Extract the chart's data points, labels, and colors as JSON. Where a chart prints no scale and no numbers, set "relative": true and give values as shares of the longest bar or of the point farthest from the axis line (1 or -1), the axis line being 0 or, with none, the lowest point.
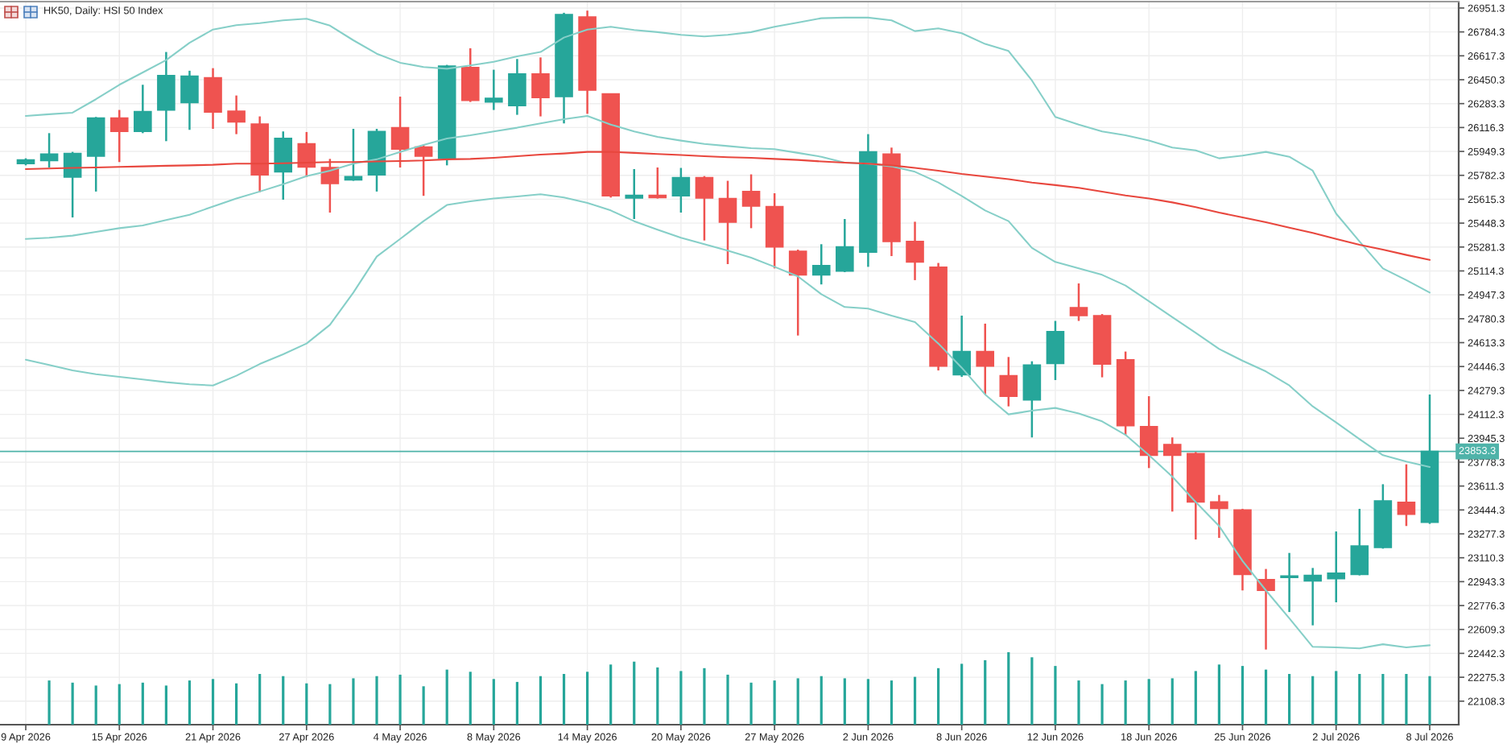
{
  "chart_data": [
    {
      "type": "candlestick",
      "title": "HK50, Daily: HSI 50 Index",
      "categories": [
        "9 Apr 2026",
        null,
        null,
        null,
        "15 Apr 2026",
        null,
        null,
        null,
        "21 Apr 2026",
        null,
        null,
        null,
        "27 Apr 2026",
        null,
        null,
        null,
        "4 May 2026",
        null,
        null,
        null,
        "8 May 2026",
        null,
        null,
        null,
        "14 May 2026",
        null,
        null,
        null,
        "20 May 2026",
        null,
        null,
        null,
        "27 May 2026",
        null,
        null,
        null,
        "2 Jun 2026",
        null,
        null,
        null,
        "8 Jun 2026",
        null,
        null,
        null,
        "12 Jun 2026",
        null,
        null,
        null,
        "18 Jun 2026",
        null,
        null,
        null,
        "25 Jun 2026",
        null,
        null,
        null,
        "2 Jul 2026",
        null,
        null,
        null,
        "8 Jul 2026"
      ],
      "ohlc": [
        [
          25864,
          25901,
          25852,
          25890
        ],
        [
          25886,
          26077,
          25837,
          25931
        ],
        [
          25770,
          25946,
          25488,
          25935
        ],
        [
          25916,
          26190,
          25669,
          26182
        ],
        [
          26182,
          26239,
          25875,
          26089
        ],
        [
          26089,
          26415,
          26077,
          26227
        ],
        [
          26239,
          26644,
          26021,
          26479
        ],
        [
          26291,
          26513,
          26100,
          26475
        ],
        [
          26464,
          26531,
          26107,
          26224
        ],
        [
          26231,
          26340,
          26070,
          26156
        ],
        [
          26141,
          26194,
          25665,
          25785
        ],
        [
          25807,
          26089,
          25612,
          26040
        ],
        [
          26002,
          26085,
          25770,
          25841
        ],
        [
          25837,
          25897,
          25522,
          25725
        ],
        [
          25751,
          26107,
          25744,
          25774
        ],
        [
          25785,
          26107,
          25669,
          26089
        ],
        [
          26115,
          26332,
          25837,
          25965
        ],
        [
          25980,
          25995,
          25639,
          25916
        ],
        [
          25901,
          26554,
          25852,
          26546
        ],
        [
          26535,
          26670,
          26295,
          26306
        ],
        [
          26295,
          26520,
          26239,
          26321
        ],
        [
          26269,
          26595,
          26205,
          26490
        ],
        [
          26490,
          26606,
          26194,
          26325
        ],
        [
          26332,
          26918,
          26145,
          26906
        ],
        [
          26888,
          26933,
          26212,
          26377
        ],
        [
          26351,
          26351,
          25627,
          25639
        ],
        [
          25624,
          25826,
          25477,
          25642
        ],
        [
          25642,
          25837,
          25620,
          25627
        ],
        [
          25639,
          25834,
          25522,
          25766
        ],
        [
          25766,
          25777,
          25327,
          25624
        ],
        [
          25620,
          25744,
          25162,
          25455
        ],
        [
          25669,
          25789,
          25413,
          25567
        ],
        [
          25564,
          25657,
          25132,
          25282
        ],
        [
          25252,
          25263,
          24663,
          25087
        ],
        [
          25087,
          25301,
          25020,
          25151
        ],
        [
          25113,
          25477,
          25106,
          25282
        ],
        [
          25245,
          26070,
          25143,
          25946
        ],
        [
          25931,
          25976,
          25218,
          25320
        ],
        [
          25320,
          25458,
          25050,
          25177
        ],
        [
          25140,
          25170,
          24419,
          24449
        ],
        [
          24389,
          24802,
          24374,
          24551
        ],
        [
          24551,
          24746,
          24251,
          24449
        ],
        [
          24382,
          24513,
          24168,
          24239
        ],
        [
          24213,
          24483,
          23951,
          24457
        ],
        [
          24468,
          24765,
          24352,
          24690
        ],
        [
          24858,
          25027,
          24765,
          24802
        ],
        [
          24802,
          24813,
          24371,
          24464
        ],
        [
          24494,
          24551,
          23969,
          24033
        ],
        [
          24026,
          24239,
          23737,
          23827
        ],
        [
          23902,
          23951,
          23433,
          23827
        ],
        [
          23838,
          23849,
          23238,
          23500
        ],
        [
          23500,
          23549,
          23249,
          23455
        ],
        [
          23444,
          23452,
          22882,
          22994
        ],
        [
          22957,
          23032,
          22469,
          22882
        ],
        [
          22972,
          23144,
          22731,
          22983
        ],
        [
          22949,
          23039,
          22638,
          22987
        ],
        [
          22964,
          23294,
          22799,
          23002
        ],
        [
          22994,
          23452,
          22987,
          23193
        ],
        [
          23182,
          23624,
          23174,
          23508
        ],
        [
          23497,
          23763,
          23332,
          23414
        ],
        [
          23358,
          24251,
          23347,
          23853.3
        ]
      ],
      "colors": [
        "#26a69a",
        "#26a69a",
        "#26a69a",
        "#26a69a",
        "#ef5350",
        "#26a69a",
        "#26a69a",
        "#26a69a",
        "#ef5350",
        "#ef5350",
        "#ef5350",
        "#26a69a",
        "#ef5350",
        "#ef5350",
        "#26a69a",
        "#26a69a",
        "#ef5350",
        "#ef5350",
        "#26a69a",
        "#ef5350",
        "#26a69a",
        "#26a69a",
        "#ef5350",
        "#26a69a",
        "#ef5350",
        "#ef5350",
        "#26a69a",
        "#ef5350",
        "#26a69a",
        "#ef5350",
        "#ef5350",
        "#ef5350",
        "#ef5350",
        "#ef5350",
        "#26a69a",
        "#26a69a",
        "#26a69a",
        "#ef5350",
        "#ef5350",
        "#ef5350",
        "#26a69a",
        "#ef5350",
        "#ef5350",
        "#26a69a",
        "#26a69a",
        "#ef5350",
        "#ef5350",
        "#ef5350",
        "#ef5350",
        "#ef5350",
        "#ef5350",
        "#ef5350",
        "#ef5350",
        "#ef5350",
        "#26a69a",
        "#26a69a",
        "#26a69a",
        "#26a69a",
        "#26a69a",
        "#ef5350",
        "#26a69a"
      ],
      "series": [
        {
          "type": "line",
          "color": "#86cfc8",
          "values": [
            26197,
            26209,
            26220,
            26314,
            26415,
            26501,
            26587,
            26708,
            26801,
            26831,
            26846,
            26865,
            26876,
            26828,
            26726,
            26632,
            26569,
            26539,
            26527,
            26550,
            26576,
            26614,
            26644,
            26745,
            26801,
            26820,
            26798,
            26783,
            26764,
            26753,
            26764,
            26783,
            26820,
            26850,
            26880,
            26884,
            26884,
            26865,
            26790,
            26809,
            26775,
            26700,
            26651,
            26445,
            26190,
            26137,
            26089,
            26062,
            26025,
            25976,
            25957,
            25901,
            25920,
            25946,
            25912,
            25815,
            25515,
            25320,
            25132,
            25050,
            24963
          ]
        },
        {
          "type": "line",
          "color": "#86cfc8",
          "values": [
            25338,
            25346,
            25361,
            25387,
            25413,
            25432,
            25470,
            25507,
            25564,
            25620,
            25669,
            25721,
            25777,
            25815,
            25864,
            25894,
            25946,
            25995,
            26040,
            26062,
            26089,
            26115,
            26145,
            26175,
            26197,
            26137,
            26089,
            26051,
            26025,
            26002,
            25987,
            25972,
            25965,
            25939,
            25912,
            25871,
            25864,
            25845,
            25807,
            25732,
            25638,
            25537,
            25462,
            25275,
            25177,
            25132,
            25087,
            25012,
            24903,
            24791,
            24682,
            24569,
            24487,
            24412,
            24314,
            24168,
            24056,
            23939,
            23827,
            23782,
            23744
          ]
        },
        {
          "type": "line",
          "color": "#86cfc8",
          "values": [
            24494,
            24457,
            24419,
            24393,
            24374,
            24356,
            24337,
            24322,
            24314,
            24382,
            24464,
            24532,
            24607,
            24738,
            24963,
            25215,
            25338,
            25462,
            25575,
            25601,
            25620,
            25635,
            25650,
            25627,
            25590,
            25537,
            25462,
            25402,
            25346,
            25301,
            25256,
            25207,
            25143,
            25076,
            24952,
            24862,
            24851,
            24802,
            24757,
            24607,
            24438,
            24251,
            24112,
            24138,
            24157,
            24119,
            24063,
            23969,
            23827,
            23677,
            23500,
            23332,
            23088,
            22882,
            22687,
            22488,
            22484,
            22477,
            22506,
            22484,
            22499
          ]
        },
        {
          "type": "line",
          "color": "#e8473e",
          "values": [
            25826,
            25830,
            25834,
            25837,
            25841,
            25845,
            25849,
            25852,
            25856,
            25864,
            25864,
            25867,
            25871,
            25875,
            25875,
            25879,
            25882,
            25886,
            25894,
            25897,
            25905,
            25916,
            25927,
            25935,
            25946,
            25946,
            25939,
            25931,
            25924,
            25916,
            25909,
            25905,
            25897,
            25890,
            25879,
            25871,
            25864,
            25852,
            25834,
            25815,
            25792,
            25774,
            25755,
            25732,
            25714,
            25695,
            25668,
            25642,
            25620,
            25593,
            25560,
            25522,
            25488,
            25455,
            25417,
            25380,
            25338,
            25297,
            25263,
            25226,
            25192
          ]
        }
      ],
      "ylim": [
        21944,
        26996
      ],
      "yticks": [
        22108.3,
        22275.3,
        22442.3,
        22609.3,
        22776.3,
        22943.3,
        23110.3,
        23277.3,
        23444.3,
        23611.3,
        23778.3,
        23945.3,
        24112.3,
        24279.3,
        24446.3,
        24613.3,
        24780.3,
        24947.3,
        25114.3,
        25281.3,
        25448.3,
        25615.3,
        25782.3,
        25949.3,
        26116.3,
        26283.3,
        26450.3,
        26617.3,
        26784.3,
        26951.3
      ],
      "ref_lines": [
        {
          "axis": "y",
          "value": 23853.3,
          "label": "23853.3",
          "color": "#4fb3a9"
        }
      ],
      "grid": true
    },
    {
      "type": "bar",
      "relative": true,
      "color": "#26a69a",
      "categories": [
        null,
        null,
        null,
        null,
        null,
        null,
        null,
        null,
        null,
        null,
        null,
        null,
        null,
        null,
        null,
        null,
        null,
        null,
        null,
        null,
        null,
        null,
        null,
        null,
        null,
        null,
        null,
        null,
        null,
        null,
        null,
        null,
        null,
        null,
        null,
        null,
        null,
        null,
        null,
        null,
        null,
        null,
        null,
        null,
        null,
        null,
        null,
        null,
        null,
        null,
        null,
        null,
        null,
        null,
        null,
        null,
        null,
        null,
        null,
        null,
        null
      ],
      "values": [
        null,
        0.61,
        0.58,
        0.54,
        0.56,
        0.58,
        0.54,
        0.61,
        0.63,
        0.57,
        0.7,
        0.67,
        0.57,
        0.56,
        0.64,
        0.67,
        0.69,
        0.53,
        0.76,
        0.73,
        0.63,
        0.59,
        0.67,
        0.7,
        0.73,
        0.83,
        0.87,
        0.79,
        0.74,
        0.78,
        0.69,
        0.58,
        0.61,
        0.64,
        0.67,
        0.64,
        0.63,
        0.61,
        0.66,
        0.78,
        0.84,
        0.89,
        1.0,
        0.93,
        0.81,
        0.61,
        0.56,
        0.61,
        0.63,
        0.64,
        0.74,
        0.83,
        0.81,
        0.76,
        0.7,
        0.67,
        0.74,
        0.7,
        0.7,
        0.7,
        0.67
      ]
    }
  ]
}
